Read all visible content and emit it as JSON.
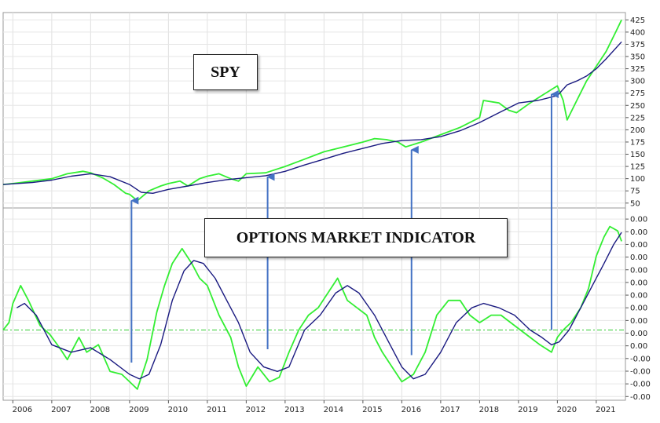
{
  "chart_data": [
    {
      "type": "line",
      "title": "SPY",
      "x_tick_labels": [
        "2006",
        "2007",
        "2008",
        "2009",
        "2010",
        "2011",
        "2012",
        "2013",
        "2014",
        "2015",
        "2016",
        "2017",
        "2018",
        "2019",
        "2020",
        "2021"
      ],
      "y_tick_labels": [
        "50",
        "75",
        "100",
        "125",
        "150",
        "175",
        "200",
        "225",
        "250",
        "275",
        "300",
        "325",
        "350",
        "375",
        "400",
        "425"
      ],
      "ylim": [
        40,
        440
      ],
      "xlim": [
        2005.75,
        2021.75
      ],
      "grid": true,
      "colors": {
        "price": "#33ee33",
        "average": "#1a1a80"
      },
      "series": [
        {
          "key": "price",
          "x": [
            2005.75,
            2006.0,
            2006.5,
            2007.0,
            2007.4,
            2007.8,
            2008.0,
            2008.3,
            2008.6,
            2008.9,
            2009.0,
            2009.2,
            2009.5,
            2009.8,
            2010.0,
            2010.3,
            2010.5,
            2010.8,
            2011.0,
            2011.3,
            2011.6,
            2011.8,
            2012.0,
            2012.5,
            2013.0,
            2013.5,
            2014.0,
            2014.5,
            2015.0,
            2015.3,
            2015.6,
            2015.9,
            2016.1,
            2016.5,
            2017.0,
            2017.5,
            2018.0,
            2018.1,
            2018.5,
            2018.75,
            2018.95,
            2019.3,
            2019.6,
            2019.9,
            2020.0,
            2020.15,
            2020.25,
            2020.5,
            2020.75,
            2021.0,
            2021.25,
            2021.5,
            2021.65
          ],
          "y": [
            88,
            90,
            95,
            100,
            110,
            115,
            112,
            102,
            88,
            70,
            68,
            55,
            75,
            85,
            90,
            95,
            85,
            100,
            105,
            110,
            100,
            95,
            110,
            112,
            125,
            140,
            155,
            165,
            175,
            182,
            180,
            175,
            165,
            175,
            190,
            205,
            225,
            260,
            255,
            240,
            235,
            255,
            270,
            285,
            290,
            260,
            220,
            260,
            300,
            330,
            360,
            400,
            425
          ]
        },
        {
          "key": "average",
          "x": [
            2005.75,
            2006.5,
            2007.0,
            2007.5,
            2008.0,
            2008.5,
            2009.0,
            2009.3,
            2009.6,
            2010.0,
            2010.5,
            2011.0,
            2011.5,
            2012.0,
            2012.5,
            2013.0,
            2013.5,
            2014.0,
            2014.5,
            2015.0,
            2015.5,
            2016.0,
            2016.5,
            2017.0,
            2017.5,
            2018.0,
            2018.5,
            2019.0,
            2019.5,
            2020.0,
            2020.25,
            2020.5,
            2020.75,
            2021.0,
            2021.25,
            2021.65
          ],
          "y": [
            88,
            92,
            97,
            105,
            110,
            104,
            88,
            72,
            70,
            78,
            85,
            92,
            98,
            102,
            106,
            115,
            128,
            140,
            152,
            162,
            172,
            178,
            180,
            186,
            198,
            215,
            235,
            255,
            260,
            270,
            292,
            300,
            310,
            325,
            345,
            380
          ]
        }
      ]
    },
    {
      "type": "line",
      "title": "OPTIONS MARKET INDICATOR",
      "y_tick_labels": [
        "-0.00",
        "-0.00",
        "-0.00",
        "-0.00",
        "0.00",
        "0.00",
        "0.00",
        "0.00",
        "0.00",
        "0.00",
        "0.00",
        "0.00",
        "0.00",
        "0.00",
        "0.00"
      ],
      "ylim": [
        -0.475,
        0.825
      ],
      "zero_line": true,
      "colors": {
        "indicator": "#33ee33",
        "average": "#1a1a80",
        "zero_line": "#33cc33"
      },
      "series": [
        {
          "key": "indicator",
          "x": [
            2005.75,
            2005.9,
            2006.0,
            2006.2,
            2006.4,
            2006.7,
            2006.95,
            2007.2,
            2007.4,
            2007.7,
            2007.9,
            2008.2,
            2008.5,
            2008.8,
            2009.0,
            2009.2,
            2009.45,
            2009.7,
            2009.9,
            2010.1,
            2010.35,
            2010.6,
            2010.8,
            2011.0,
            2011.3,
            2011.6,
            2011.8,
            2012.0,
            2012.3,
            2012.6,
            2012.85,
            2013.1,
            2013.35,
            2013.6,
            2013.85,
            2014.1,
            2014.35,
            2014.6,
            2014.85,
            2015.1,
            2015.3,
            2015.5,
            2015.75,
            2016.0,
            2016.3,
            2016.6,
            2016.9,
            2017.2,
            2017.5,
            2017.75,
            2018.0,
            2018.3,
            2018.55,
            2018.8,
            2019.05,
            2019.3,
            2019.55,
            2019.85,
            2020.0,
            2020.15,
            2020.35,
            2020.6,
            2020.8,
            2021.0,
            2021.2,
            2021.35,
            2021.55,
            2021.65
          ],
          "y": [
            0.0,
            0.05,
            0.18,
            0.3,
            0.2,
            0.03,
            -0.03,
            -0.12,
            -0.2,
            -0.05,
            -0.15,
            -0.1,
            -0.28,
            -0.3,
            -0.35,
            -0.4,
            -0.2,
            0.12,
            0.3,
            0.45,
            0.55,
            0.45,
            0.35,
            0.3,
            0.1,
            -0.05,
            -0.25,
            -0.38,
            -0.25,
            -0.35,
            -0.32,
            -0.15,
            0.0,
            0.1,
            0.15,
            0.25,
            0.35,
            0.2,
            0.15,
            0.1,
            -0.05,
            -0.15,
            -0.25,
            -0.35,
            -0.3,
            -0.15,
            0.1,
            0.2,
            0.2,
            0.1,
            0.05,
            0.1,
            0.1,
            0.05,
            0.0,
            -0.05,
            -0.1,
            -0.15,
            -0.05,
            0.0,
            0.05,
            0.15,
            0.28,
            0.5,
            0.63,
            0.7,
            0.67,
            0.6
          ]
        },
        {
          "key": "average",
          "x": [
            2006.1,
            2006.3,
            2006.6,
            2007.0,
            2007.5,
            2008.0,
            2008.5,
            2009.0,
            2009.25,
            2009.5,
            2009.8,
            2010.1,
            2010.4,
            2010.65,
            2010.9,
            2011.2,
            2011.5,
            2011.8,
            2012.1,
            2012.45,
            2012.8,
            2013.1,
            2013.5,
            2013.9,
            2014.3,
            2014.6,
            2014.9,
            2015.3,
            2015.7,
            2016.0,
            2016.3,
            2016.6,
            2017.0,
            2017.4,
            2017.8,
            2018.1,
            2018.5,
            2018.9,
            2019.3,
            2019.6,
            2019.85,
            2020.05,
            2020.3,
            2020.6,
            2020.9,
            2021.2,
            2021.45,
            2021.65
          ],
          "y": [
            0.15,
            0.18,
            0.1,
            -0.1,
            -0.15,
            -0.12,
            -0.2,
            -0.3,
            -0.33,
            -0.3,
            -0.1,
            0.2,
            0.4,
            0.47,
            0.45,
            0.35,
            0.2,
            0.05,
            -0.15,
            -0.25,
            -0.28,
            -0.25,
            0.0,
            0.1,
            0.25,
            0.3,
            0.25,
            0.1,
            -0.1,
            -0.25,
            -0.33,
            -0.3,
            -0.15,
            0.05,
            0.15,
            0.18,
            0.15,
            0.1,
            0.0,
            -0.05,
            -0.1,
            -0.08,
            0.0,
            0.15,
            0.3,
            0.45,
            0.58,
            0.66
          ]
        }
      ]
    }
  ],
  "annotations": {
    "spy_label": "SPY",
    "omi_label": "OPTIONS MARKET INDICATOR",
    "arrow_color": "#4472c4",
    "arrows": [
      {
        "x": 2009.05,
        "from_y": -0.22
      },
      {
        "x": 2012.55,
        "from_y": -0.13
      },
      {
        "x": 2016.25,
        "from_y": -0.17
      },
      {
        "x": 2019.85,
        "from_y": 0.0
      }
    ]
  }
}
